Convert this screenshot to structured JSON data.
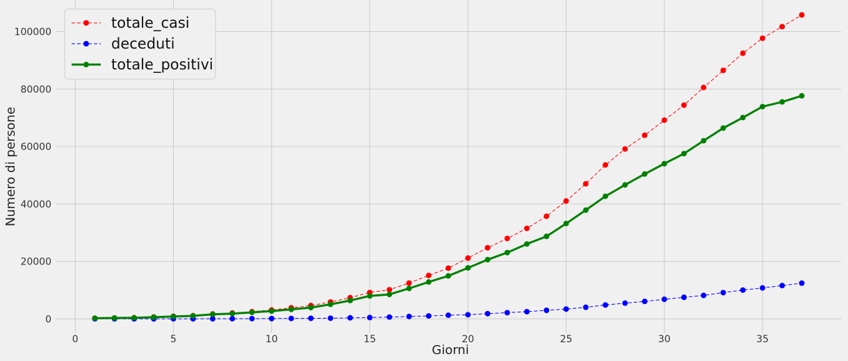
{
  "chart_data": {
    "type": "line",
    "xlabel": "Giorni",
    "ylabel": "Numero di persone",
    "xlim": [
      -1,
      39
    ],
    "ylim": [
      -5000,
      111000
    ],
    "xticks": [
      0,
      5,
      10,
      15,
      20,
      25,
      30,
      35
    ],
    "yticks": [
      0,
      20000,
      40000,
      60000,
      80000,
      100000
    ],
    "grid": true,
    "legend_position": "top-left",
    "x": [
      1,
      2,
      3,
      4,
      5,
      6,
      7,
      8,
      9,
      10,
      11,
      12,
      13,
      14,
      15,
      16,
      17,
      18,
      19,
      20,
      21,
      22,
      23,
      24,
      25,
      26,
      27,
      28,
      29,
      30,
      31,
      32,
      33,
      34,
      35,
      36,
      37
    ],
    "series": [
      {
        "name": "totale_casi",
        "color": "#ff0000",
        "style": "dashed",
        "values": [
          229,
          322,
          400,
          650,
          888,
          1128,
          1694,
          2036,
          2502,
          3089,
          3858,
          4636,
          5883,
          7375,
          9172,
          10149,
          12462,
          15113,
          17660,
          21157,
          24747,
          27980,
          31506,
          35713,
          41035,
          47021,
          53578,
          59138,
          63927,
          69176,
          74386,
          80539,
          86498,
          92472,
          97689,
          101739,
          105792
        ]
      },
      {
        "name": "deceduti",
        "color": "#0000ff",
        "style": "dashed",
        "values": [
          7,
          10,
          12,
          17,
          21,
          29,
          34,
          52,
          79,
          107,
          148,
          197,
          233,
          366,
          463,
          631,
          827,
          1016,
          1266,
          1441,
          1809,
          2158,
          2503,
          2978,
          3405,
          4032,
          4825,
          5476,
          6077,
          6820,
          7503,
          8165,
          9134,
          10023,
          10779,
          11591,
          12428
        ]
      },
      {
        "name": "totale_positivi",
        "color": "#008000",
        "style": "solid",
        "values": [
          221,
          311,
          385,
          588,
          821,
          1049,
          1577,
          1835,
          2263,
          2706,
          3296,
          3916,
          5061,
          6387,
          7985,
          8514,
          10590,
          12839,
          14955,
          17750,
          20603,
          23073,
          26062,
          28710,
          33190,
          37860,
          42681,
          46638,
          50418,
          54030,
          57521,
          62013,
          66414,
          70065,
          73880,
          75528,
          77635
        ]
      }
    ]
  }
}
